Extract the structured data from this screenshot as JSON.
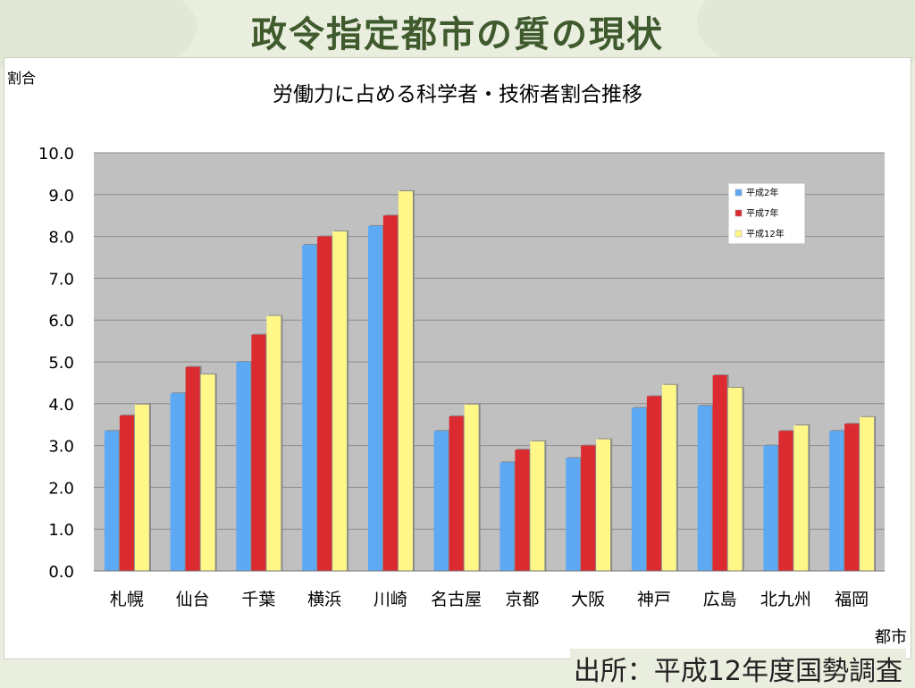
{
  "slide": {
    "title": "政令指定都市の質の現状",
    "source": "出所：平成12年度国勢調査"
  },
  "colors": {
    "background": "#e9eedf",
    "plot_area": "#c0c0c0",
    "title_text": "#3f5a2d"
  },
  "chart_data": {
    "type": "bar",
    "title": "労働力に占める科学者・技術者割合推移",
    "ylabel": "割合",
    "xlabel": "都市",
    "categories": [
      "札幌",
      "仙台",
      "千葉",
      "横浜",
      "川崎",
      "名古屋",
      "京都",
      "大阪",
      "神戸",
      "広島",
      "北九州",
      "福岡"
    ],
    "series": [
      {
        "name": "平成2年",
        "color": "#5ea9f3",
        "values": [
          3.35,
          4.25,
          5.0,
          7.8,
          8.25,
          3.35,
          2.6,
          2.7,
          3.9,
          3.95,
          3.0,
          3.35
        ]
      },
      {
        "name": "平成7年",
        "color": "#dc2a31",
        "values": [
          3.72,
          4.88,
          5.65,
          8.0,
          8.5,
          3.7,
          2.9,
          3.0,
          4.18,
          4.68,
          3.35,
          3.52
        ]
      },
      {
        "name": "平成12年",
        "color": "#fff888",
        "values": [
          3.98,
          4.7,
          6.1,
          8.12,
          9.08,
          3.98,
          3.1,
          3.15,
          4.45,
          4.38,
          3.48,
          3.68
        ]
      }
    ],
    "ylim": [
      0,
      10
    ],
    "yticks": [
      "0.0",
      "1.0",
      "2.0",
      "3.0",
      "4.0",
      "5.0",
      "6.0",
      "7.0",
      "8.0",
      "9.0",
      "10.0"
    ],
    "grid": true,
    "legend_position": "top-right"
  }
}
